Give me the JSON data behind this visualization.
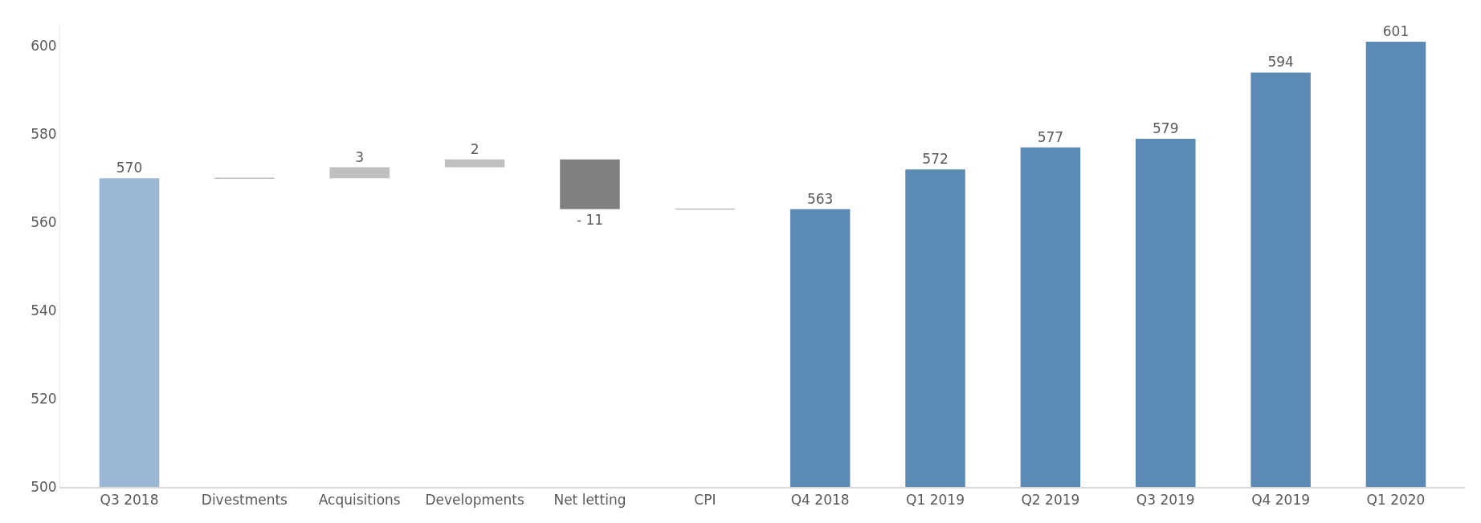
{
  "chart_data": {
    "type": "bar",
    "categories": [
      "Q3 2018",
      "Divestments",
      "Acquisitions",
      "Developments",
      "Net letting",
      "CPI",
      "Q4 2018",
      "Q1 2019",
      "Q2 2019",
      "Q3 2019",
      "Q4 2019",
      "Q1 2020"
    ],
    "values": [
      570,
      0,
      2.5,
      1.8,
      -11.3,
      0,
      563,
      572,
      577,
      579,
      594,
      601
    ],
    "base": [
      null,
      570,
      570,
      572.5,
      574.3,
      563,
      null,
      null,
      null,
      null,
      null,
      null
    ],
    "value_labels": [
      "570",
      null,
      "3",
      "2",
      "- 11",
      null,
      "563",
      "572",
      "577",
      "579",
      "594",
      "601"
    ],
    "colors": [
      "#9bb7d4",
      "#bfbfbf",
      "#bfbfbf",
      "#bfbfbf",
      "#808080",
      "#bfbfbf",
      "#5b8ab5",
      "#5b8ab5",
      "#5b8ab5",
      "#5b8ab5",
      "#5b8ab5",
      "#5b8ab5"
    ],
    "ylim": [
      500,
      605
    ],
    "yticks": [
      500,
      520,
      540,
      560,
      580,
      600
    ],
    "grid": false,
    "legend": false
  }
}
